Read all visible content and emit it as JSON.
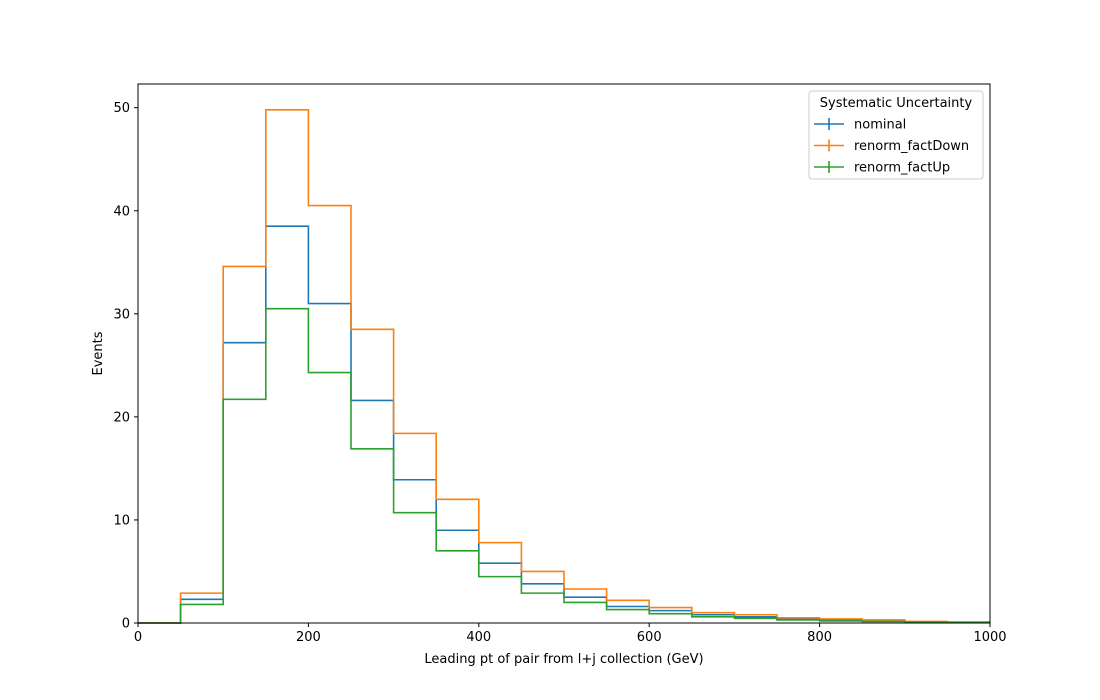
{
  "chart_data": {
    "type": "histogram-step",
    "xlabel": "Leading pt of pair from l+j collection (GeV)",
    "ylabel": "Events",
    "xlim": [
      0,
      1000
    ],
    "ylim": [
      0,
      52.3
    ],
    "xticks": [
      0,
      200,
      400,
      600,
      800,
      1000
    ],
    "yticks": [
      0,
      10,
      20,
      30,
      40,
      50
    ],
    "grid": false,
    "legend": {
      "title": "Systematic Uncertainty",
      "placement": "top-right"
    },
    "bin_edges": [
      0,
      50,
      100,
      150,
      200,
      250,
      300,
      350,
      400,
      450,
      500,
      550,
      600,
      650,
      700,
      750,
      800,
      850,
      900,
      950,
      1000
    ],
    "series": [
      {
        "name": "nominal",
        "color": "#1f77b4",
        "values": [
          0,
          2.3,
          27.2,
          38.5,
          31.0,
          21.6,
          13.9,
          9.0,
          5.8,
          3.8,
          2.5,
          1.6,
          1.2,
          0.8,
          0.6,
          0.4,
          0.3,
          0.2,
          0.1,
          0.05
        ]
      },
      {
        "name": "renorm_factDown",
        "color": "#ff7f0e",
        "values": [
          0,
          2.9,
          34.6,
          49.8,
          40.5,
          28.5,
          18.4,
          12.0,
          7.8,
          5.0,
          3.3,
          2.2,
          1.5,
          1.0,
          0.8,
          0.5,
          0.4,
          0.3,
          0.15,
          0.1
        ]
      },
      {
        "name": "renorm_factUp",
        "color": "#2ca02c",
        "values": [
          0,
          1.8,
          21.7,
          30.5,
          24.3,
          16.9,
          10.7,
          7.0,
          4.5,
          2.9,
          2.0,
          1.3,
          0.9,
          0.6,
          0.45,
          0.3,
          0.2,
          0.15,
          0.08,
          0.04
        ]
      }
    ]
  }
}
